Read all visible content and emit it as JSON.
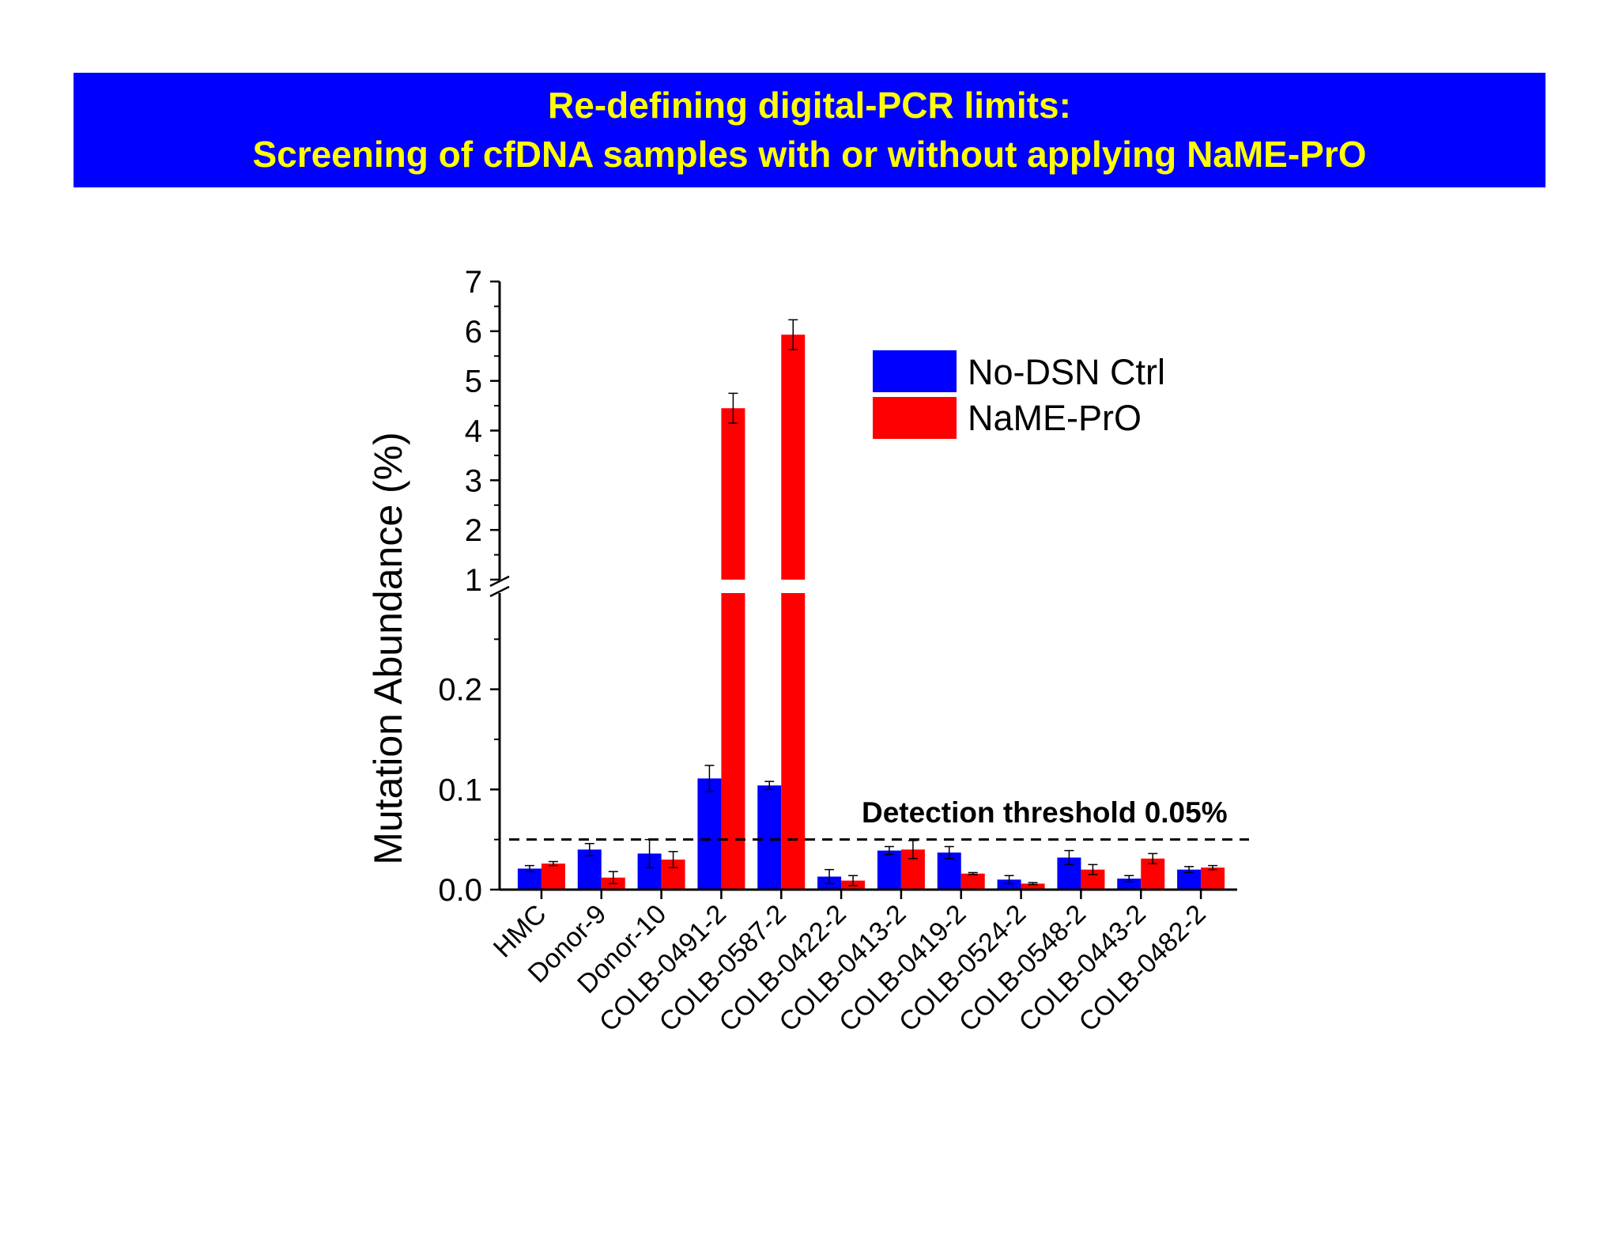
{
  "header": {
    "title_line1": "Re-defining digital-PCR limits:",
    "title_line2": "Screening of cfDNA samples with or without applying NaME-PrO"
  },
  "colors": {
    "banner_background": "#0000ff",
    "banner_text": "#ffff00",
    "series_no_dsn": "#0000ff",
    "series_name_pro": "#ff0000"
  },
  "chart_data": {
    "type": "bar",
    "ylabel": "Mutation Abundance (%)",
    "y_axis_break": {
      "lower_range": [
        0,
        0.3
      ],
      "upper_range": [
        1,
        7
      ]
    },
    "lower_ticks": [
      "0.0",
      "0.1",
      "0.2"
    ],
    "upper_ticks": [
      "1",
      "2",
      "3",
      "4",
      "5",
      "6",
      "7"
    ],
    "categories": [
      "HMC",
      "Donor-9",
      "Donor-10",
      "COLB-0491-2",
      "COLB-0587-2",
      "COLB-0422-2",
      "COLB-0413-2",
      "COLB-0419-2",
      "COLB-0524-2",
      "COLB-0548-2",
      "COLB-0443-2",
      "COLB-0482-2"
    ],
    "series": [
      {
        "name": "No-DSN Ctrl",
        "color": "#0000ff",
        "values": [
          0.021,
          0.04,
          0.036,
          0.111,
          0.104,
          0.013,
          0.039,
          0.037,
          0.01,
          0.032,
          0.011,
          0.02
        ],
        "errors": [
          0.003,
          0.006,
          0.014,
          0.013,
          0.004,
          0.007,
          0.004,
          0.006,
          0.004,
          0.007,
          0.003,
          0.003
        ]
      },
      {
        "name": "NaME-PrO",
        "color": "#ff0000",
        "values": [
          0.026,
          0.012,
          0.03,
          4.45,
          5.93,
          0.009,
          0.04,
          0.016,
          0.006,
          0.02,
          0.031,
          0.022
        ],
        "errors": [
          0.002,
          0.006,
          0.008,
          0.3,
          0.3,
          0.005,
          0.009,
          0.001,
          0.001,
          0.005,
          0.005,
          0.002
        ]
      }
    ],
    "threshold": {
      "value": 0.05,
      "label": "Detection threshold 0.05%"
    },
    "legend_position": "top-right",
    "grid": false
  }
}
